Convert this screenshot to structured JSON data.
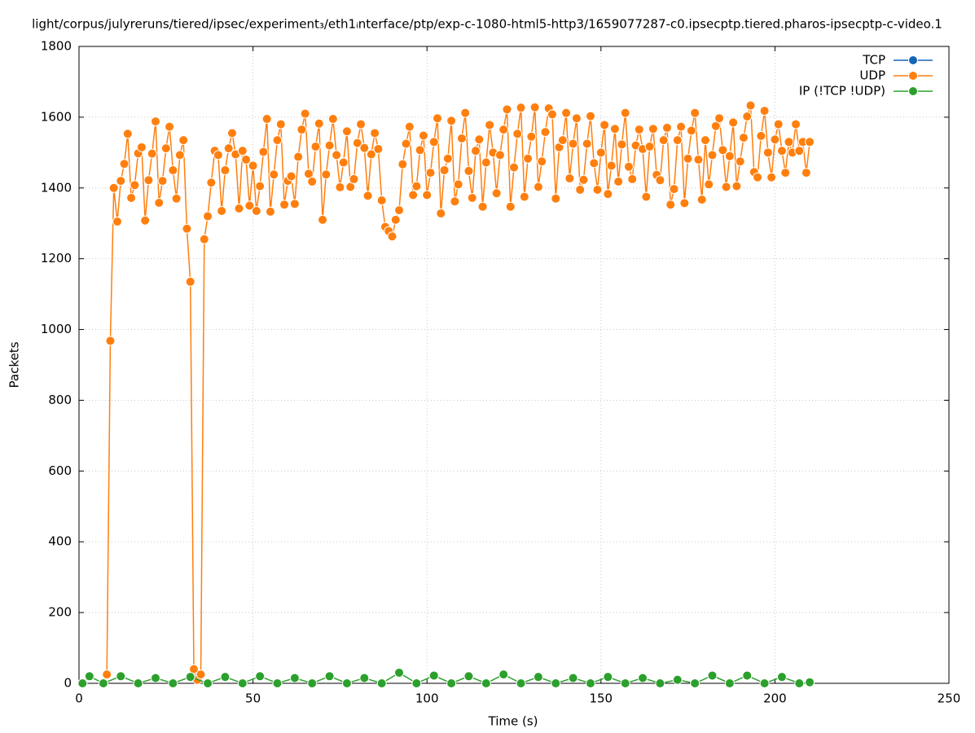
{
  "chart_data": {
    "type": "line",
    "title": "light/corpus/julyreruns/tiered/ipsec/experiment₃/eth1ᵢnterface/ptp/exp-c-1080-html5-http3/1659077287-c0.ipsecptp.tiered.pharos-ipsecptp-c-video.1",
    "x_label": "Time (s)",
    "y_label": "Packets",
    "xlim": [
      0,
      250
    ],
    "xticks": [
      0,
      50,
      100,
      150,
      200,
      250
    ],
    "ylim": [
      0,
      1800
    ],
    "yticks": [
      0,
      200,
      400,
      600,
      800,
      1000,
      1200,
      1400,
      1600,
      1800
    ],
    "grid": true,
    "legend": "top-right",
    "series": [
      {
        "name": "TCP",
        "color": "#1565b5",
        "x": [],
        "values": []
      },
      {
        "name": "UDP",
        "color": "#ff7f0e",
        "x": [
          8,
          9,
          10,
          11,
          12,
          13,
          14,
          15,
          16,
          17,
          18,
          19,
          20,
          21,
          22,
          23,
          24,
          25,
          26,
          27,
          28,
          29,
          30,
          31,
          32,
          33,
          34,
          35,
          36,
          37,
          38,
          39,
          40,
          41,
          42,
          43,
          44,
          45,
          46,
          47,
          48,
          49,
          50,
          51,
          52,
          53,
          54,
          55,
          56,
          57,
          58,
          59,
          60,
          61,
          62,
          63,
          64,
          65,
          66,
          67,
          68,
          69,
          70,
          71,
          72,
          73,
          74,
          75,
          76,
          77,
          78,
          79,
          80,
          81,
          82,
          83,
          84,
          85,
          86,
          87,
          88,
          89,
          90,
          91,
          92,
          93,
          94,
          95,
          96,
          97,
          98,
          99,
          100,
          101,
          102,
          103,
          104,
          105,
          106,
          107,
          108,
          109,
          110,
          111,
          112,
          113,
          114,
          115,
          116,
          117,
          118,
          119,
          120,
          121,
          122,
          123,
          124,
          125,
          126,
          127,
          128,
          129,
          130,
          131,
          132,
          133,
          134,
          135,
          136,
          137,
          138,
          139,
          140,
          141,
          142,
          143,
          144,
          145,
          146,
          147,
          148,
          149,
          150,
          151,
          152,
          153,
          154,
          155,
          156,
          157,
          158,
          159,
          160,
          161,
          162,
          163,
          164,
          165,
          166,
          167,
          168,
          169,
          170,
          171,
          172,
          173,
          174,
          175,
          176,
          177,
          178,
          179,
          180,
          181,
          182,
          183,
          184,
          185,
          186,
          187,
          188,
          189,
          190,
          191,
          192,
          193,
          194,
          195,
          196,
          197,
          198,
          199,
          200,
          201,
          202,
          203,
          204,
          205,
          206,
          207,
          208,
          209,
          210
        ],
        "values": [
          25,
          968,
          1400,
          1305,
          1420,
          1468,
          1553,
          1372,
          1408,
          1498,
          1515,
          1308,
          1422,
          1497,
          1588,
          1358,
          1420,
          1512,
          1573,
          1450,
          1370,
          1493,
          1535,
          1285,
          1135,
          40,
          10,
          25,
          1255,
          1320,
          1415,
          1505,
          1493,
          1335,
          1450,
          1512,
          1555,
          1495,
          1342,
          1505,
          1480,
          1350,
          1463,
          1335,
          1405,
          1502,
          1595,
          1333,
          1438,
          1535,
          1580,
          1353,
          1420,
          1433,
          1355,
          1488,
          1565,
          1610,
          1440,
          1418,
          1517,
          1582,
          1310,
          1438,
          1520,
          1595,
          1493,
          1402,
          1472,
          1560,
          1403,
          1425,
          1527,
          1580,
          1513,
          1378,
          1495,
          1555,
          1510,
          1365,
          1290,
          1278,
          1263,
          1310,
          1337,
          1467,
          1525,
          1573,
          1380,
          1405,
          1507,
          1548,
          1380,
          1443,
          1530,
          1597,
          1328,
          1450,
          1483,
          1590,
          1362,
          1410,
          1540,
          1612,
          1448,
          1372,
          1505,
          1537,
          1347,
          1472,
          1578,
          1500,
          1385,
          1493,
          1565,
          1622,
          1347,
          1458,
          1553,
          1627,
          1375,
          1483,
          1545,
          1628,
          1403,
          1475,
          1558,
          1625,
          1608,
          1370,
          1515,
          1535,
          1612,
          1427,
          1525,
          1597,
          1395,
          1423,
          1525,
          1603,
          1470,
          1395,
          1500,
          1578,
          1383,
          1463,
          1567,
          1418,
          1523,
          1612,
          1460,
          1425,
          1520,
          1565,
          1510,
          1375,
          1517,
          1567,
          1437,
          1422,
          1535,
          1570,
          1353,
          1397,
          1535,
          1573,
          1357,
          1483,
          1562,
          1612,
          1480,
          1367,
          1535,
          1410,
          1493,
          1575,
          1597,
          1507,
          1403,
          1490,
          1585,
          1405,
          1475,
          1542,
          1602,
          1633,
          1445,
          1430,
          1547,
          1618,
          1500,
          1430,
          1537,
          1580,
          1505,
          1443,
          1530,
          1500,
          1580,
          1505,
          1530,
          1443,
          1530
        ]
      },
      {
        "name": "IP (!TCP  !UDP)",
        "color": "#2ca02c",
        "x": [
          1,
          3,
          7,
          12,
          17,
          22,
          27,
          32,
          37,
          42,
          47,
          52,
          57,
          62,
          67,
          72,
          77,
          82,
          87,
          92,
          97,
          102,
          107,
          112,
          117,
          122,
          127,
          132,
          137,
          142,
          147,
          152,
          157,
          162,
          167,
          172,
          177,
          182,
          187,
          192,
          197,
          202,
          207,
          210
        ],
        "values": [
          0,
          20,
          0,
          20,
          0,
          15,
          0,
          18,
          0,
          18,
          0,
          20,
          0,
          15,
          0,
          20,
          0,
          15,
          0,
          30,
          0,
          22,
          0,
          20,
          0,
          25,
          0,
          18,
          0,
          15,
          0,
          18,
          0,
          15,
          0,
          10,
          0,
          22,
          0,
          22,
          0,
          18,
          0,
          3
        ]
      }
    ]
  }
}
